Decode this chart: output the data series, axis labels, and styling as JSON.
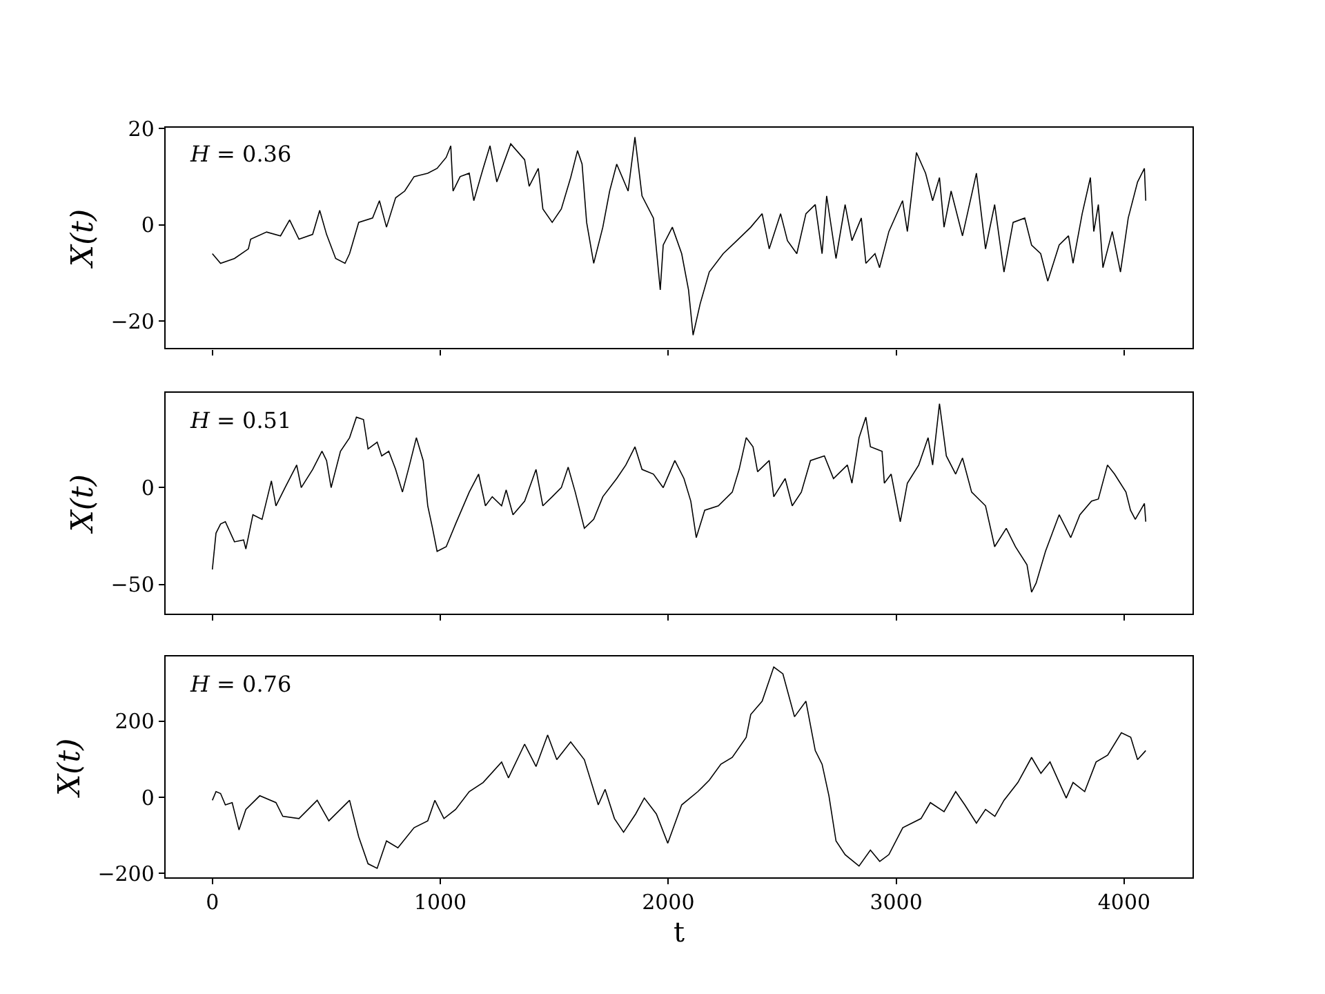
{
  "chart_data": [
    {
      "type": "line",
      "color": "#000000",
      "ylabel": "X(t)",
      "annotations": [
        "H = 0.36"
      ],
      "tick_labels": "y",
      "xlim": [
        -205,
        4300
      ],
      "xticks": [
        0,
        1000,
        2000,
        3000,
        4000
      ],
      "ylim": [
        -25.6,
        20.2
      ],
      "yticks": [
        -20,
        0,
        20
      ],
      "x": [
        0,
        36,
        97,
        158,
        168,
        238,
        299,
        339,
        380,
        440,
        471,
        501,
        541,
        582,
        602,
        642,
        703,
        733,
        764,
        804,
        844,
        885,
        945,
        986,
        1026,
        1046,
        1056,
        1087,
        1127,
        1147,
        1188,
        1218,
        1248,
        1309,
        1370,
        1390,
        1430,
        1450,
        1491,
        1531,
        1572,
        1602,
        1622,
        1642,
        1673,
        1713,
        1743,
        1774,
        1824,
        1854,
        1885,
        1935,
        1965,
        1978,
        2018,
        2059,
        2089,
        2109,
        2140,
        2180,
        2241,
        2301,
        2362,
        2412,
        2443,
        2493,
        2523,
        2564,
        2604,
        2645,
        2675,
        2695,
        2736,
        2776,
        2806,
        2847,
        2867,
        2907,
        2927,
        2968,
        3028,
        3049,
        3089,
        3129,
        3160,
        3190,
        3210,
        3241,
        3291,
        3352,
        3392,
        3432,
        3473,
        3513,
        3564,
        3594,
        3634,
        3665,
        3715,
        3756,
        3776,
        3816,
        3852,
        3867,
        3887,
        3907,
        3948,
        3984,
        4018,
        4059,
        4089,
        4095
      ],
      "values": [
        -6,
        -8,
        -7,
        -5,
        -3,
        -1.5,
        -2.3,
        1,
        -3,
        -2,
        3,
        -2,
        -7,
        -8,
        -6,
        0.5,
        1.4,
        5,
        -0.5,
        5.6,
        7,
        10,
        10.7,
        11.7,
        14,
        16.4,
        7,
        10,
        10.7,
        5,
        11.7,
        16.4,
        8.9,
        16.8,
        13.5,
        8,
        11.7,
        3.3,
        0.5,
        3.3,
        9.8,
        15.4,
        12.6,
        0.5,
        -8,
        -0.5,
        7,
        12.6,
        7,
        18.2,
        6,
        1.4,
        -13.5,
        -4.2,
        -0.5,
        -6,
        -13.5,
        -22.9,
        -16.4,
        -9.8,
        -6,
        -3.3,
        -0.5,
        2.3,
        -5,
        2.3,
        -3.3,
        -6,
        2.3,
        4.2,
        -6,
        6,
        -7,
        4.2,
        -3.3,
        1.4,
        -8,
        -6,
        -8.9,
        -1.4,
        5,
        -1.4,
        15,
        10.7,
        5,
        9.8,
        -0.5,
        7,
        -2.3,
        10.7,
        -5,
        4.2,
        -9.8,
        0.5,
        1.4,
        -4.2,
        -6,
        -11.7,
        -4.2,
        -2.3,
        -8,
        2.3,
        9.8,
        -1.4,
        4.2,
        -8.9,
        -1.4,
        -9.8,
        1.4,
        8.9,
        11.7,
        5
      ]
    },
    {
      "type": "line",
      "color": "#000000",
      "ylabel": "X(t)",
      "annotations": [
        "H = 0.51"
      ],
      "tick_labels": "y",
      "xlim": [
        -205,
        4300
      ],
      "xticks": [
        0,
        1000,
        2000,
        3000,
        4000
      ],
      "ylim": [
        -65,
        49
      ],
      "yticks": [
        -50,
        0
      ],
      "x": [
        0,
        16,
        36,
        57,
        97,
        137,
        147,
        178,
        218,
        259,
        279,
        319,
        370,
        390,
        440,
        481,
        501,
        521,
        562,
        602,
        632,
        663,
        683,
        723,
        743,
        774,
        804,
        834,
        865,
        895,
        925,
        945,
        966,
        986,
        1026,
        1067,
        1127,
        1168,
        1198,
        1228,
        1269,
        1289,
        1319,
        1370,
        1420,
        1450,
        1491,
        1531,
        1561,
        1592,
        1632,
        1673,
        1713,
        1774,
        1814,
        1854,
        1885,
        1935,
        1978,
        2029,
        2069,
        2099,
        2123,
        2160,
        2220,
        2281,
        2311,
        2342,
        2372,
        2392,
        2443,
        2463,
        2513,
        2544,
        2584,
        2624,
        2685,
        2725,
        2786,
        2806,
        2837,
        2867,
        2887,
        2938,
        2948,
        2978,
        3018,
        3049,
        3099,
        3140,
        3160,
        3190,
        3220,
        3261,
        3291,
        3331,
        3392,
        3432,
        3483,
        3523,
        3574,
        3594,
        3614,
        3655,
        3715,
        3766,
        3806,
        3857,
        3887,
        3927,
        3958,
        4008,
        4028,
        4049,
        4089,
        4095
      ],
      "values": [
        -42.3,
        -23.5,
        -18.8,
        -17.6,
        -28,
        -27,
        -31.7,
        -14,
        -16.4,
        3.5,
        -9.4,
        0,
        11.7,
        0,
        9.4,
        18.8,
        14,
        0,
        18.8,
        25.8,
        36.4,
        35.2,
        20,
        23.5,
        16.4,
        18.8,
        9.4,
        -2.3,
        11.7,
        25.8,
        14,
        -9.4,
        -21,
        -32.9,
        -30.5,
        -18.8,
        -2.3,
        7,
        -9.4,
        -4.7,
        -9.4,
        -1.2,
        -14,
        -7,
        9.4,
        -9.4,
        -4.7,
        0,
        10.6,
        -2.3,
        -21,
        -16.4,
        -4.7,
        4.7,
        11.7,
        21.1,
        9.4,
        7,
        0,
        14,
        4.7,
        -7,
        -25.8,
        -11.7,
        -9.4,
        -2.3,
        9.4,
        25.8,
        21.1,
        8.2,
        14,
        -4.7,
        4.7,
        -9.4,
        -2.3,
        14,
        16.4,
        4.7,
        11.7,
        2.3,
        25.8,
        36.4,
        21.1,
        18.8,
        2.3,
        7,
        -17.6,
        2.3,
        11.7,
        25.8,
        11.7,
        43.4,
        16.4,
        7,
        15.3,
        -2.3,
        -9.4,
        -30.5,
        -21,
        -30.5,
        -39.9,
        -54,
        -49.3,
        -32.9,
        -14,
        -25.8,
        -14,
        -7,
        -5.9,
        11.7,
        7,
        -2.3,
        -11.7,
        -16.4,
        -8.2,
        -17.6
      ]
    },
    {
      "type": "line",
      "color": "#000000",
      "ylabel": "X(t)",
      "xlabel": "t",
      "annotations": [
        "H = 0.76"
      ],
      "xlim": [
        -205,
        4300
      ],
      "xticks": [
        0,
        1000,
        2000,
        3000,
        4000
      ],
      "ylim": [
        -211,
        370
      ],
      "yticks": [
        -200,
        0,
        200
      ],
      "x": [
        0,
        16,
        36,
        57,
        87,
        117,
        147,
        208,
        279,
        309,
        380,
        460,
        511,
        602,
        642,
        683,
        723,
        764,
        814,
        885,
        945,
        976,
        1016,
        1067,
        1127,
        1188,
        1269,
        1299,
        1370,
        1420,
        1471,
        1511,
        1572,
        1632,
        1693,
        1723,
        1764,
        1804,
        1857,
        1895,
        1948,
        1998,
        2059,
        2130,
        2180,
        2231,
        2281,
        2342,
        2362,
        2412,
        2463,
        2503,
        2554,
        2604,
        2645,
        2675,
        2705,
        2736,
        2776,
        2837,
        2887,
        2928,
        2968,
        3029,
        3109,
        3150,
        3210,
        3261,
        3301,
        3352,
        3392,
        3433,
        3473,
        3534,
        3594,
        3635,
        3675,
        3746,
        3776,
        3827,
        3877,
        3928,
        3988,
        4029,
        4059,
        4095
      ],
      "values": [
        -8,
        15,
        10,
        -20,
        -14,
        -86,
        -32,
        4,
        -14,
        -50,
        -56,
        -8,
        -62,
        -8,
        -104,
        -175,
        -187,
        -115,
        -133,
        -80,
        -62,
        -8,
        -56,
        -32,
        15,
        39,
        93,
        51,
        140,
        81,
        164,
        99,
        146,
        99,
        -20,
        21,
        -56,
        -92,
        -44,
        -2,
        -44,
        -121,
        -20,
        15,
        45,
        87,
        105,
        158,
        218,
        253,
        343,
        325,
        212,
        253,
        123,
        87,
        4,
        -115,
        -151,
        -181,
        -139,
        -169,
        -151,
        -80,
        -56,
        -14,
        -38,
        15,
        -20,
        -68,
        -32,
        -50,
        -8,
        39,
        105,
        63,
        93,
        -2,
        39,
        15,
        93,
        111,
        170,
        158,
        99,
        123
      ]
    }
  ]
}
